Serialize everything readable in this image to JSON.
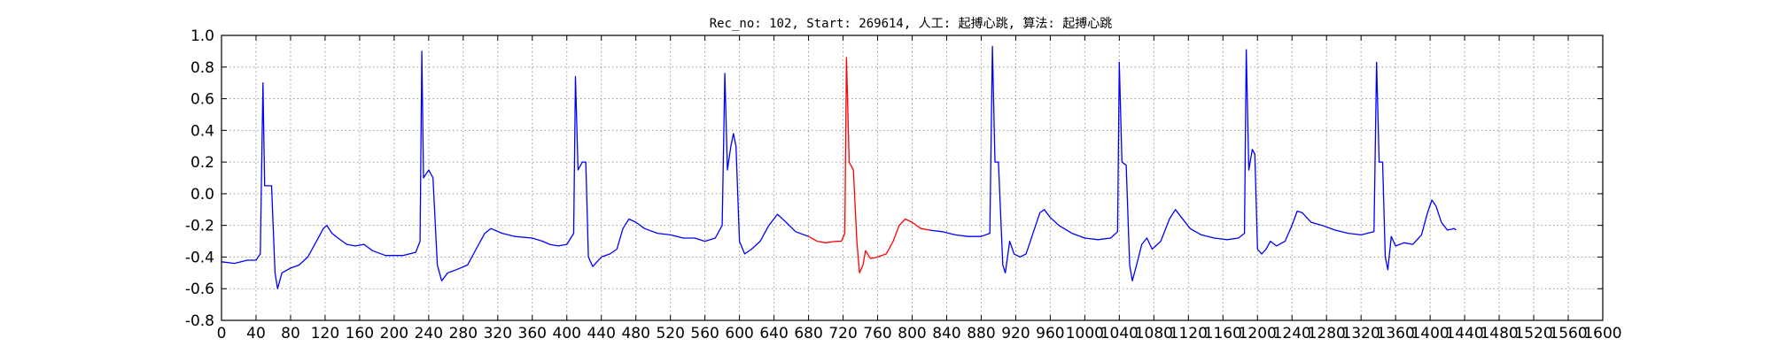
{
  "chart_data": {
    "type": "line",
    "title": "Rec_no: 102, Start: 269614, 人工: 起搏心跳, 算法: 起搏心跳",
    "xlabel": "",
    "ylabel": "",
    "xlim": [
      0,
      1600
    ],
    "ylim": [
      -0.8,
      1.0
    ],
    "x_ticks": [
      0,
      40,
      80,
      120,
      160,
      200,
      240,
      280,
      320,
      360,
      400,
      440,
      480,
      520,
      560,
      600,
      640,
      680,
      720,
      760,
      800,
      840,
      880,
      920,
      960,
      1000,
      1040,
      1080,
      1120,
      1160,
      1200,
      1240,
      1280,
      1320,
      1360,
      1400,
      1440,
      1480,
      1520,
      1560,
      1600
    ],
    "y_ticks": [
      "1.0",
      "0.8",
      "0.6",
      "0.4",
      "0.2",
      "0.0",
      "-0.2",
      "-0.4",
      "-0.6",
      "-0.8"
    ],
    "grid": true,
    "colors": {
      "trace": "#0000ff",
      "highlight": "#ff0000",
      "grid": "#9a9a9a"
    },
    "highlight_range": [
      680,
      820
    ],
    "series": [
      {
        "color": "#0000ff",
        "points": [
          [
            0,
            -0.43
          ],
          [
            15,
            -0.44
          ],
          [
            30,
            -0.42
          ],
          [
            40,
            -0.42
          ],
          [
            45,
            -0.38
          ],
          [
            48,
            0.7
          ],
          [
            50,
            0.05
          ],
          [
            55,
            0.05
          ],
          [
            58,
            0.05
          ],
          [
            62,
            -0.5
          ],
          [
            65,
            -0.6
          ],
          [
            70,
            -0.5
          ],
          [
            80,
            -0.47
          ],
          [
            90,
            -0.45
          ],
          [
            100,
            -0.4
          ],
          [
            110,
            -0.3
          ],
          [
            118,
            -0.22
          ],
          [
            122,
            -0.2
          ],
          [
            128,
            -0.25
          ],
          [
            135,
            -0.28
          ],
          [
            145,
            -0.32
          ],
          [
            155,
            -0.33
          ],
          [
            165,
            -0.32
          ],
          [
            175,
            -0.36
          ],
          [
            190,
            -0.39
          ],
          [
            210,
            -0.39
          ],
          [
            225,
            -0.37
          ],
          [
            230,
            -0.3
          ],
          [
            232,
            0.9
          ],
          [
            234,
            0.1
          ],
          [
            240,
            0.15
          ],
          [
            245,
            0.1
          ],
          [
            250,
            -0.45
          ],
          [
            255,
            -0.55
          ],
          [
            262,
            -0.5
          ],
          [
            272,
            -0.48
          ],
          [
            285,
            -0.45
          ],
          [
            295,
            -0.35
          ],
          [
            305,
            -0.25
          ],
          [
            312,
            -0.22
          ],
          [
            325,
            -0.25
          ],
          [
            340,
            -0.27
          ],
          [
            360,
            -0.28
          ],
          [
            372,
            -0.3
          ],
          [
            380,
            -0.32
          ],
          [
            390,
            -0.33
          ],
          [
            400,
            -0.32
          ],
          [
            408,
            -0.25
          ],
          [
            410,
            0.74
          ],
          [
            413,
            0.15
          ],
          [
            418,
            0.2
          ],
          [
            422,
            0.2
          ],
          [
            425,
            -0.4
          ],
          [
            430,
            -0.46
          ],
          [
            440,
            -0.4
          ],
          [
            450,
            -0.38
          ],
          [
            458,
            -0.35
          ],
          [
            465,
            -0.22
          ],
          [
            472,
            -0.16
          ],
          [
            480,
            -0.18
          ],
          [
            490,
            -0.22
          ],
          [
            505,
            -0.25
          ],
          [
            520,
            -0.26
          ],
          [
            535,
            -0.28
          ],
          [
            548,
            -0.28
          ],
          [
            560,
            -0.3
          ],
          [
            572,
            -0.28
          ],
          [
            580,
            -0.2
          ],
          [
            583,
            0.76
          ],
          [
            586,
            0.15
          ],
          [
            590,
            0.3
          ],
          [
            593,
            0.38
          ],
          [
            596,
            0.3
          ],
          [
            600,
            -0.3
          ],
          [
            606,
            -0.38
          ],
          [
            614,
            -0.35
          ],
          [
            624,
            -0.3
          ],
          [
            634,
            -0.2
          ],
          [
            644,
            -0.13
          ],
          [
            652,
            -0.17
          ],
          [
            665,
            -0.24
          ],
          [
            680,
            -0.27
          ]
        ]
      },
      {
        "color": "#ff0000",
        "points": [
          [
            680,
            -0.27
          ],
          [
            690,
            -0.3
          ],
          [
            700,
            -0.31
          ],
          [
            712,
            -0.3
          ],
          [
            718,
            -0.3
          ],
          [
            722,
            -0.25
          ],
          [
            724,
            0.86
          ],
          [
            727,
            0.2
          ],
          [
            732,
            0.15
          ],
          [
            736,
            -0.3
          ],
          [
            739,
            -0.5
          ],
          [
            743,
            -0.45
          ],
          [
            746,
            -0.36
          ],
          [
            752,
            -0.41
          ],
          [
            760,
            -0.4
          ],
          [
            770,
            -0.38
          ],
          [
            778,
            -0.3
          ],
          [
            785,
            -0.2
          ],
          [
            792,
            -0.16
          ],
          [
            800,
            -0.18
          ],
          [
            810,
            -0.22
          ],
          [
            820,
            -0.23
          ]
        ]
      },
      {
        "color": "#0000ff",
        "points": [
          [
            820,
            -0.23
          ],
          [
            835,
            -0.24
          ],
          [
            850,
            -0.26
          ],
          [
            865,
            -0.27
          ],
          [
            880,
            -0.27
          ],
          [
            890,
            -0.25
          ],
          [
            893,
            0.93
          ],
          [
            896,
            0.2
          ],
          [
            900,
            0.2
          ],
          [
            905,
            -0.45
          ],
          [
            908,
            -0.5
          ],
          [
            913,
            -0.3
          ],
          [
            918,
            -0.38
          ],
          [
            925,
            -0.4
          ],
          [
            932,
            -0.38
          ],
          [
            940,
            -0.25
          ],
          [
            948,
            -0.12
          ],
          [
            953,
            -0.1
          ],
          [
            960,
            -0.15
          ],
          [
            970,
            -0.2
          ],
          [
            985,
            -0.25
          ],
          [
            1000,
            -0.28
          ],
          [
            1015,
            -0.29
          ],
          [
            1030,
            -0.28
          ],
          [
            1038,
            -0.24
          ],
          [
            1040,
            0.83
          ],
          [
            1043,
            0.2
          ],
          [
            1048,
            0.18
          ],
          [
            1052,
            -0.45
          ],
          [
            1055,
            -0.55
          ],
          [
            1060,
            -0.45
          ],
          [
            1066,
            -0.32
          ],
          [
            1072,
            -0.28
          ],
          [
            1078,
            -0.35
          ],
          [
            1088,
            -0.3
          ],
          [
            1098,
            -0.16
          ],
          [
            1105,
            -0.1
          ],
          [
            1112,
            -0.15
          ],
          [
            1122,
            -0.22
          ],
          [
            1135,
            -0.26
          ],
          [
            1150,
            -0.28
          ],
          [
            1165,
            -0.29
          ],
          [
            1178,
            -0.28
          ],
          [
            1185,
            -0.25
          ],
          [
            1187,
            0.91
          ],
          [
            1190,
            0.15
          ],
          [
            1194,
            0.28
          ],
          [
            1197,
            0.25
          ],
          [
            1200,
            -0.35
          ],
          [
            1205,
            -0.38
          ],
          [
            1210,
            -0.35
          ],
          [
            1215,
            -0.3
          ],
          [
            1222,
            -0.33
          ],
          [
            1232,
            -0.3
          ],
          [
            1240,
            -0.2
          ],
          [
            1246,
            -0.11
          ],
          [
            1252,
            -0.12
          ],
          [
            1262,
            -0.18
          ],
          [
            1275,
            -0.2
          ],
          [
            1290,
            -0.23
          ],
          [
            1305,
            -0.25
          ],
          [
            1320,
            -0.26
          ],
          [
            1335,
            -0.24
          ],
          [
            1338,
            0.83
          ],
          [
            1341,
            0.2
          ],
          [
            1345,
            0.2
          ],
          [
            1348,
            -0.4
          ],
          [
            1351,
            -0.48
          ],
          [
            1355,
            -0.27
          ],
          [
            1360,
            -0.33
          ],
          [
            1370,
            -0.31
          ],
          [
            1380,
            -0.32
          ],
          [
            1390,
            -0.26
          ],
          [
            1397,
            -0.12
          ],
          [
            1402,
            -0.04
          ],
          [
            1407,
            -0.08
          ],
          [
            1413,
            -0.18
          ],
          [
            1420,
            -0.23
          ],
          [
            1428,
            -0.22
          ],
          [
            1430,
            -0.23
          ]
        ]
      }
    ]
  }
}
